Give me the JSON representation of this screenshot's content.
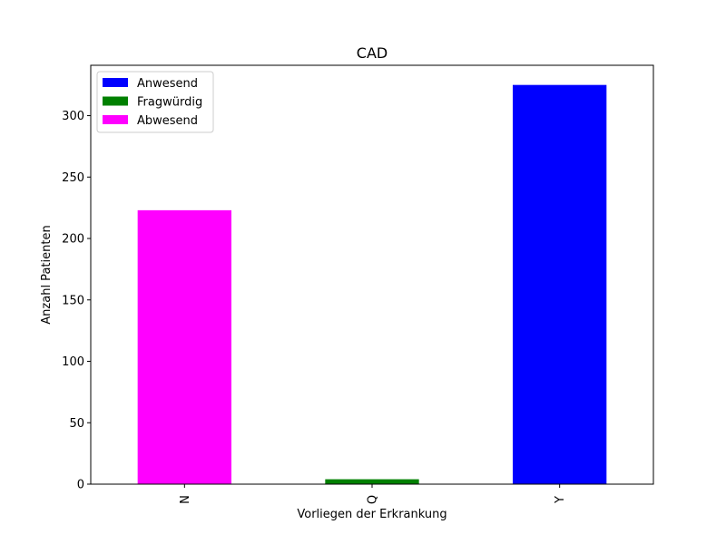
{
  "chart_data": {
    "type": "bar",
    "title": "CAD",
    "xlabel": "Vorliegen der Erkrankung",
    "ylabel": "Anzahl Patienten",
    "categories": [
      "N",
      "Q",
      "Y"
    ],
    "values": [
      223,
      4,
      325
    ],
    "bar_colors": [
      "#ff00ff",
      "#008000",
      "#0000ff"
    ],
    "ylim": [
      0,
      341
    ],
    "yticks": [
      0,
      50,
      100,
      150,
      200,
      250,
      300
    ],
    "grid": false,
    "legend_position": "top-left",
    "legend": [
      {
        "label": "Anwesend",
        "color": "#0000ff"
      },
      {
        "label": "Fragwürdig",
        "color": "#008000"
      },
      {
        "label": "Abwesend",
        "color": "#ff00ff"
      }
    ]
  }
}
